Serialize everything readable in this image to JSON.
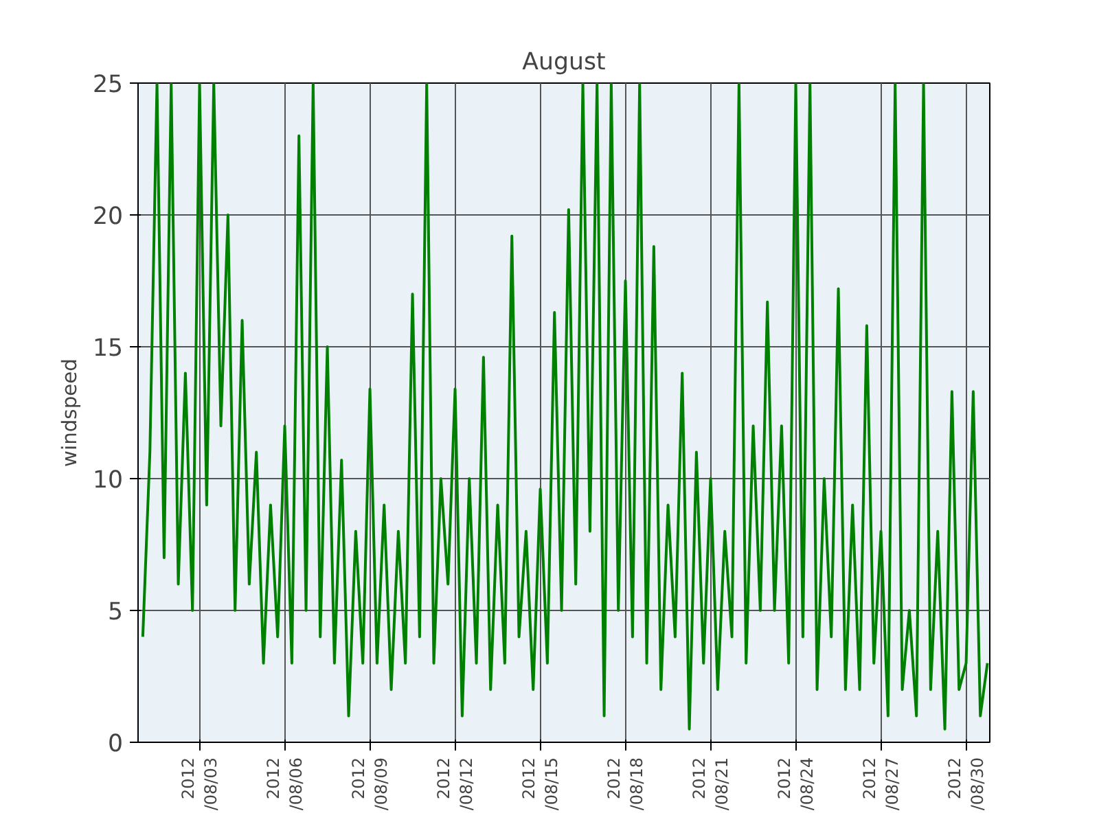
{
  "chart_data": {
    "type": "line",
    "title": "August",
    "ylabel": "windspeed",
    "color": "#008000",
    "grid": true,
    "xlim": [
      "2012-07-31T20:00",
      "2012-08-30T20:00"
    ],
    "ylim": [
      0,
      25
    ],
    "yticks": [
      0,
      5,
      10,
      15,
      20,
      25
    ],
    "xticks": [
      {
        "value": "2012-08-03",
        "label": "2012\n/08/03"
      },
      {
        "value": "2012-08-06",
        "label": "2012\n/08/06"
      },
      {
        "value": "2012-08-09",
        "label": "2012\n/08/09"
      },
      {
        "value": "2012-08-12",
        "label": "2012\n/08/12"
      },
      {
        "value": "2012-08-15",
        "label": "2012\n/08/15"
      },
      {
        "value": "2012-08-18",
        "label": "2012\n/08/18"
      },
      {
        "value": "2012-08-21",
        "label": "2012\n/08/21"
      },
      {
        "value": "2012-08-24",
        "label": "2012\n/08/24"
      },
      {
        "value": "2012-08-27",
        "label": "2012\n/08/27"
      },
      {
        "value": "2012-08-30",
        "label": "2012\n/08/30"
      }
    ],
    "x": [
      "2012-08-01T00:00",
      "2012-08-01T06:00",
      "2012-08-01T12:00",
      "2012-08-01T18:00",
      "2012-08-02T00:00",
      "2012-08-02T06:00",
      "2012-08-02T12:00",
      "2012-08-02T18:00",
      "2012-08-03T00:00",
      "2012-08-03T06:00",
      "2012-08-03T12:00",
      "2012-08-03T18:00",
      "2012-08-04T00:00",
      "2012-08-04T06:00",
      "2012-08-04T12:00",
      "2012-08-04T18:00",
      "2012-08-05T00:00",
      "2012-08-05T06:00",
      "2012-08-05T12:00",
      "2012-08-05T18:00",
      "2012-08-06T00:00",
      "2012-08-06T06:00",
      "2012-08-06T12:00",
      "2012-08-06T18:00",
      "2012-08-07T00:00",
      "2012-08-07T06:00",
      "2012-08-07T12:00",
      "2012-08-07T18:00",
      "2012-08-08T00:00",
      "2012-08-08T06:00",
      "2012-08-08T12:00",
      "2012-08-08T18:00",
      "2012-08-09T00:00",
      "2012-08-09T06:00",
      "2012-08-09T12:00",
      "2012-08-09T18:00",
      "2012-08-10T00:00",
      "2012-08-10T06:00",
      "2012-08-10T12:00",
      "2012-08-10T18:00",
      "2012-08-11T00:00",
      "2012-08-11T06:00",
      "2012-08-11T12:00",
      "2012-08-11T18:00",
      "2012-08-12T00:00",
      "2012-08-12T06:00",
      "2012-08-12T12:00",
      "2012-08-12T18:00",
      "2012-08-13T00:00",
      "2012-08-13T06:00",
      "2012-08-13T12:00",
      "2012-08-13T18:00",
      "2012-08-14T00:00",
      "2012-08-14T06:00",
      "2012-08-14T12:00",
      "2012-08-14T18:00",
      "2012-08-15T00:00",
      "2012-08-15T06:00",
      "2012-08-15T12:00",
      "2012-08-15T18:00",
      "2012-08-16T00:00",
      "2012-08-16T06:00",
      "2012-08-16T12:00",
      "2012-08-16T18:00",
      "2012-08-17T00:00",
      "2012-08-17T06:00",
      "2012-08-17T12:00",
      "2012-08-17T18:00",
      "2012-08-18T00:00",
      "2012-08-18T06:00",
      "2012-08-18T12:00",
      "2012-08-18T18:00",
      "2012-08-19T00:00",
      "2012-08-19T06:00",
      "2012-08-19T12:00",
      "2012-08-19T18:00",
      "2012-08-20T00:00",
      "2012-08-20T06:00",
      "2012-08-20T12:00",
      "2012-08-20T18:00",
      "2012-08-21T00:00",
      "2012-08-21T06:00",
      "2012-08-21T12:00",
      "2012-08-21T18:00",
      "2012-08-22T00:00",
      "2012-08-22T06:00",
      "2012-08-22T12:00",
      "2012-08-22T18:00",
      "2012-08-23T00:00",
      "2012-08-23T06:00",
      "2012-08-23T12:00",
      "2012-08-23T18:00",
      "2012-08-24T00:00",
      "2012-08-24T06:00",
      "2012-08-24T12:00",
      "2012-08-24T18:00",
      "2012-08-25T00:00",
      "2012-08-25T06:00",
      "2012-08-25T12:00",
      "2012-08-25T18:00",
      "2012-08-26T00:00",
      "2012-08-26T06:00",
      "2012-08-26T12:00",
      "2012-08-26T18:00",
      "2012-08-27T00:00",
      "2012-08-27T06:00",
      "2012-08-27T12:00",
      "2012-08-27T18:00",
      "2012-08-28T00:00",
      "2012-08-28T06:00",
      "2012-08-28T12:00",
      "2012-08-28T18:00",
      "2012-08-29T00:00",
      "2012-08-29T06:00",
      "2012-08-29T12:00",
      "2012-08-29T18:00",
      "2012-08-30T00:00",
      "2012-08-30T06:00",
      "2012-08-30T12:00",
      "2012-08-30T18:00"
    ],
    "values": [
      4,
      11,
      25,
      7,
      25,
      6,
      14,
      5,
      25,
      9,
      25,
      12,
      20,
      5,
      16,
      6,
      11,
      3,
      9,
      4,
      12,
      3,
      23,
      5,
      25,
      4,
      15,
      3,
      10.7,
      1,
      8,
      3,
      13.4,
      3,
      9,
      2,
      8,
      3,
      17,
      4,
      25,
      3,
      10,
      6,
      13.4,
      1,
      10,
      3,
      14.6,
      2,
      9,
      3,
      19.2,
      4,
      8,
      2,
      9.6,
      3,
      16.3,
      5,
      20.2,
      6,
      25,
      8,
      25,
      1,
      25,
      5,
      17.5,
      4,
      25,
      3,
      18.8,
      2,
      9,
      4,
      14,
      0.5,
      11,
      3,
      10,
      2,
      8,
      4,
      25,
      3,
      12,
      5,
      16.7,
      5,
      12,
      3,
      25,
      4,
      25,
      2,
      10,
      4,
      17.2,
      2,
      9,
      2,
      15.8,
      3,
      8,
      1,
      25,
      2,
      5,
      1,
      25,
      2,
      8,
      0.5,
      13.3,
      2,
      3,
      13.3,
      1,
      3
    ]
  }
}
